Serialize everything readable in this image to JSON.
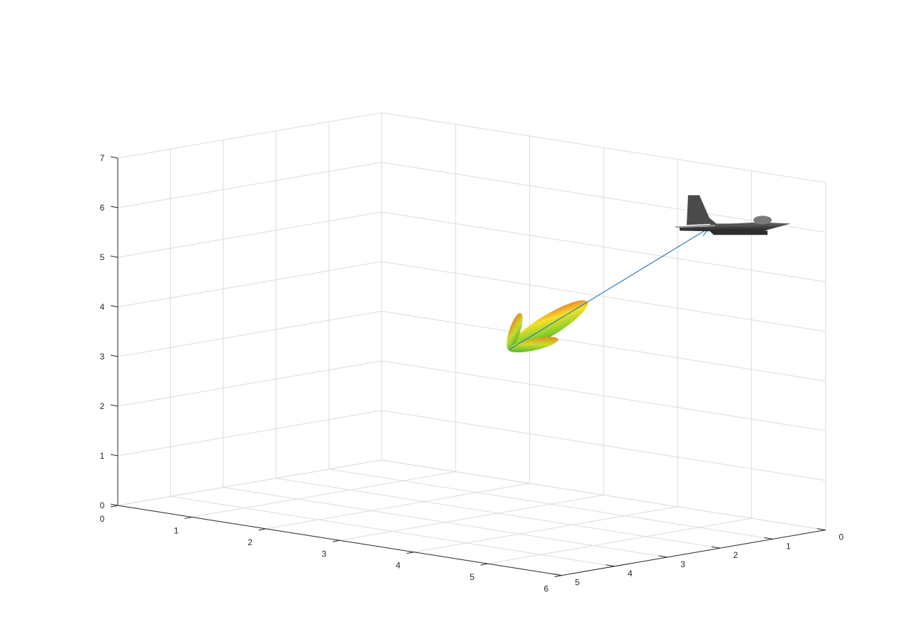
{
  "chart_data": {
    "type": "3d-scene",
    "title": "",
    "xlabel": "",
    "ylabel": "",
    "zlabel": "",
    "x_axis": {
      "range": [
        0,
        6
      ],
      "ticks": [
        0,
        1,
        2,
        3,
        4,
        5,
        6
      ],
      "tick_labels": [
        "0",
        "1",
        "2",
        "3",
        "4",
        "5",
        "6"
      ]
    },
    "y_axis": {
      "range": [
        0,
        5
      ],
      "ticks": [
        0,
        1,
        2,
        3,
        4,
        5
      ],
      "tick_labels": [
        "0",
        "1",
        "2",
        "3",
        "4",
        "5"
      ]
    },
    "z_axis": {
      "range": [
        0,
        7
      ],
      "ticks": [
        0,
        1,
        2,
        3,
        4,
        5,
        6,
        7
      ],
      "tick_labels": [
        "0",
        "1",
        "2",
        "3",
        "4",
        "5",
        "6",
        "7"
      ]
    },
    "grid": true,
    "series": [
      {
        "name": "antenna-pattern",
        "kind": "radiation-pattern",
        "origin": [
          3.5,
          2.5,
          3.5
        ],
        "colormap": [
          "#1f9e2e",
          "#8fd12a",
          "#f5e02a",
          "#f08a24",
          "#e2301d"
        ],
        "lobes": [
          {
            "name": "main-lobe",
            "direction": "toward-target",
            "relative_gain": 1.0
          },
          {
            "name": "side-lobe-upper",
            "relative_gain": 0.42
          },
          {
            "name": "side-lobe-lower",
            "relative_gain": 0.55
          }
        ]
      },
      {
        "name": "line-of-sight",
        "kind": "quiver",
        "start": [
          3.5,
          2.5,
          3.5
        ],
        "end": [
          5.0,
          0.8,
          6.0
        ],
        "color": "#2b7bba"
      },
      {
        "name": "target-aircraft",
        "kind": "model",
        "position": [
          5.0,
          0.8,
          6.0
        ],
        "color": "#4a4a4a"
      }
    ]
  }
}
